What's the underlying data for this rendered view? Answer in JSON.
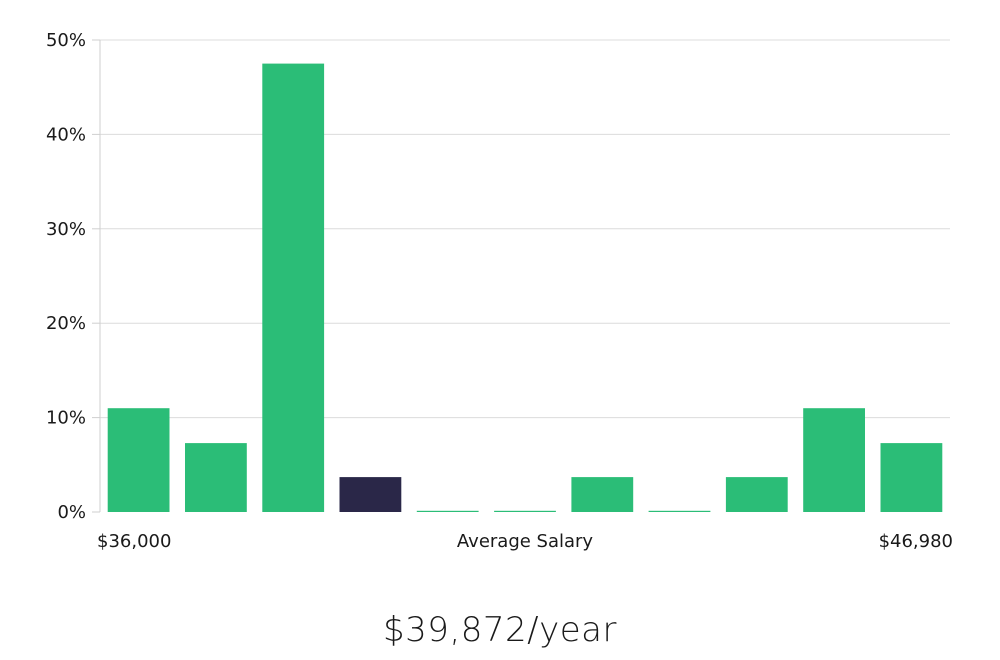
{
  "chart_data": {
    "type": "bar",
    "title": "",
    "xlabel": "Average Salary",
    "ylabel": "",
    "x_min_label": "$36,000",
    "x_max_label": "$46,980",
    "ylim": [
      0,
      50
    ],
    "y_ticks": [
      0,
      10,
      20,
      30,
      40,
      50
    ],
    "y_tick_suffix": "%",
    "grid": true,
    "highlight_index": 3,
    "bar_color": "#2bbd77",
    "highlight_color": "#2a2748",
    "values": [
      11,
      7.3,
      47.5,
      3.7,
      0,
      0,
      3.7,
      0,
      3.7,
      11,
      7.3
    ]
  },
  "summary": {
    "average_salary": "$39,872/year"
  }
}
